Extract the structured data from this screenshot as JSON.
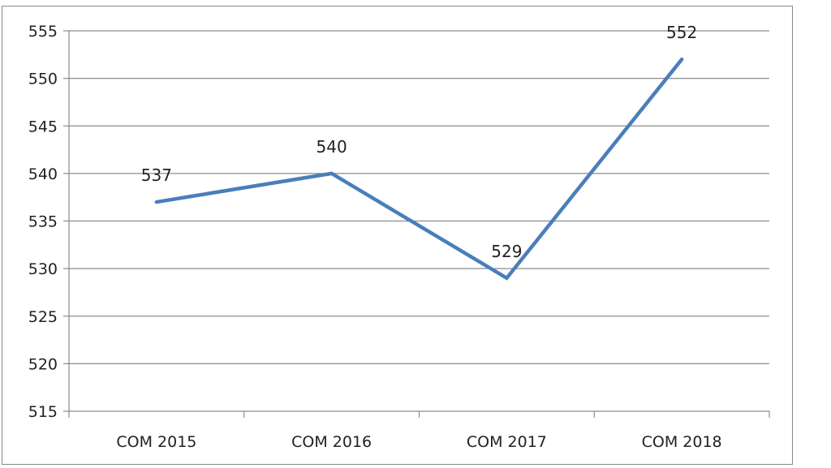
{
  "chart_data": {
    "type": "line",
    "title": "",
    "xlabel": "",
    "ylabel": "",
    "categories": [
      "COM 2015",
      "COM 2016",
      "COM 2017",
      "COM 2018"
    ],
    "series": [
      {
        "values": [
          537,
          540,
          529,
          552
        ],
        "data_labels": [
          "537",
          "540",
          "529",
          "552"
        ],
        "color": "#4a7ebb"
      }
    ],
    "ylim": [
      515,
      555
    ],
    "yticks": [
      "515",
      "520",
      "525",
      "530",
      "535",
      "540",
      "545",
      "550",
      "555"
    ],
    "grid": true,
    "legend": "none"
  }
}
